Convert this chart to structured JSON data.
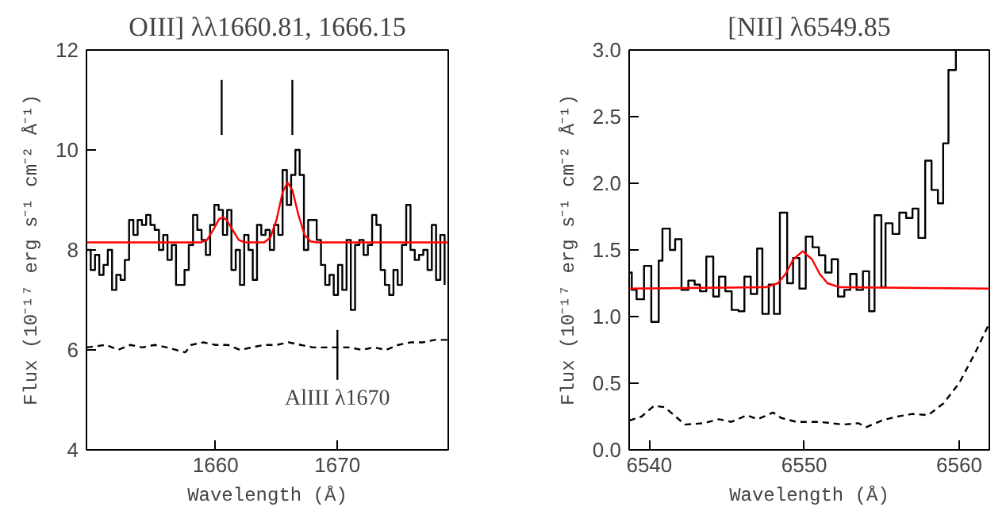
{
  "chart_data": [
    {
      "type": "step",
      "title": "OIII] λλ1660.81, 1666.15",
      "xlabel": "Wavelength (Å)",
      "ylabel": "Flux (10⁻¹⁷ erg s⁻¹ cm⁻² Å⁻¹)",
      "xlim": [
        1649.4,
        1679.1
      ],
      "ylim": [
        4,
        12
      ],
      "xticks": [
        1660,
        1670
      ],
      "yticks": [
        4,
        6,
        8,
        10,
        12
      ],
      "series": [
        {
          "color": "#000000",
          "x": [
            1649.4,
            1649.75,
            1650.1,
            1650.45,
            1650.8,
            1651.15,
            1651.5,
            1651.85,
            1652.2,
            1652.55,
            1652.9,
            1653.25,
            1653.6,
            1653.95,
            1654.3,
            1654.65,
            1655.0,
            1655.35,
            1655.7,
            1656.05,
            1656.4,
            1656.75,
            1657.1,
            1657.45,
            1657.8,
            1658.15,
            1658.5,
            1658.85,
            1659.2,
            1659.55,
            1659.9,
            1660.25,
            1660.6,
            1660.95,
            1661.3,
            1661.65,
            1662.0,
            1662.35,
            1662.7,
            1663.05,
            1663.4,
            1663.75,
            1664.1,
            1664.45,
            1664.8,
            1665.15,
            1665.5,
            1665.85,
            1666.2,
            1666.55,
            1666.9,
            1667.25,
            1667.6,
            1667.95,
            1668.3,
            1668.65,
            1669.0,
            1669.35,
            1669.7,
            1670.05,
            1670.4,
            1670.75,
            1671.1,
            1671.45,
            1671.8,
            1672.15,
            1672.5,
            1672.85,
            1673.2,
            1673.55,
            1673.9,
            1674.25,
            1674.6,
            1674.95,
            1675.3,
            1675.65,
            1676.0,
            1676.35,
            1676.7,
            1677.05,
            1677.4,
            1677.75,
            1678.1,
            1678.45,
            1678.8
          ],
          "values": [
            8.0,
            7.6,
            7.9,
            7.5,
            7.7,
            8.0,
            7.2,
            7.5,
            7.4,
            7.8,
            8.6,
            8.3,
            8.6,
            8.5,
            8.7,
            8.5,
            8.4,
            8.0,
            8.3,
            7.8,
            8.1,
            7.3,
            7.3,
            7.6,
            8.1,
            8.7,
            8.4,
            8.2,
            7.9,
            8.5,
            8.9,
            8.8,
            8.3,
            8.8,
            7.6,
            8.0,
            7.3,
            8.3,
            8.0,
            7.4,
            8.5,
            8.3,
            8.4,
            8.0,
            8.5,
            8.3,
            9.6,
            8.9,
            9.5,
            10.0,
            9.5,
            8.0,
            8.6,
            8.6,
            8.2,
            7.7,
            7.3,
            7.5,
            7.1,
            7.7,
            7.2,
            8.2,
            6.8,
            8.1,
            8.2,
            7.9,
            8.1,
            8.7,
            8.5,
            7.6,
            7.3,
            7.1,
            7.6,
            7.3,
            8.1,
            8.9,
            8.0,
            7.8,
            7.9,
            8.0,
            7.6,
            8.5,
            7.4,
            8.3,
            7.3
          ]
        },
        {
          "type": "line",
          "color": "#ff0000",
          "x": [
            1649.4,
            1658.8,
            1659.3,
            1659.8,
            1660.3,
            1660.6,
            1660.9,
            1661.4,
            1661.9,
            1662.4,
            1664.0,
            1664.5,
            1665.0,
            1665.5,
            1665.9,
            1666.3,
            1666.8,
            1667.3,
            1667.8,
            1668.3,
            1679.1
          ],
          "values": [
            8.15,
            8.15,
            8.2,
            8.4,
            8.62,
            8.65,
            8.6,
            8.4,
            8.2,
            8.15,
            8.15,
            8.25,
            8.6,
            9.15,
            9.35,
            9.2,
            8.7,
            8.3,
            8.17,
            8.15,
            8.15
          ]
        },
        {
          "type": "line",
          "color": "#000000",
          "line_style": "dashed",
          "x": [
            1649.4,
            1651,
            1652,
            1653,
            1654,
            1655,
            1656,
            1657.5,
            1658,
            1659,
            1660,
            1661,
            1662,
            1663,
            1664,
            1665,
            1666,
            1667,
            1668,
            1669,
            1670,
            1671,
            1672,
            1673,
            1674,
            1675,
            1676,
            1677,
            1678,
            1679.1
          ],
          "values": [
            6.05,
            6.1,
            6.0,
            6.1,
            6.05,
            6.1,
            6.05,
            5.95,
            6.1,
            6.15,
            6.1,
            6.1,
            6.0,
            6.05,
            6.1,
            6.1,
            6.15,
            6.1,
            6.05,
            6.05,
            6.05,
            6.05,
            6.0,
            6.05,
            6.0,
            6.1,
            6.15,
            6.15,
            6.2,
            6.2
          ]
        },
        {
          "type": "line",
          "color": "#000000",
          "x": [
            1660.5,
            1660.5
          ],
          "values": [
            10.3,
            11.4
          ]
        },
        {
          "type": "line",
          "color": "#000000",
          "x": [
            1666.3,
            1666.3
          ],
          "values": [
            10.3,
            11.4
          ]
        },
        {
          "type": "line",
          "color": "#000000",
          "x": [
            1670,
            1670
          ],
          "values": [
            5.4,
            6.4
          ]
        }
      ],
      "annotations": [
        {
          "text": "AlIII λ1670",
          "x": 1670,
          "y": 5.25
        }
      ]
    },
    {
      "type": "step",
      "title": "[NII] λ6549.85",
      "xlabel": "Wavelength (Å)",
      "ylabel": "Flux (10⁻¹⁷ erg s⁻¹ cm⁻² Å⁻¹)",
      "xlim": [
        6538.7,
        6561.95
      ],
      "ylim": [
        0,
        3
      ],
      "xticks": [
        6540,
        6550,
        6560
      ],
      "yticks": [
        {
          "value": 0,
          "label": "0.0"
        },
        {
          "value": 0.5,
          "label": "0.5"
        },
        {
          "value": 1,
          "label": "1.0"
        },
        {
          "value": 1.5,
          "label": "1.5"
        },
        {
          "value": 2,
          "label": "2.0"
        },
        {
          "value": 2.5,
          "label": "2.5"
        },
        {
          "value": 3,
          "label": "3.0"
        }
      ],
      "series": [
        {
          "color": "#000000",
          "x": [
            6538.7,
            6538.87,
            6539.18,
            6539.66,
            6540.13,
            6540.61,
            6540.85,
            6541.33,
            6541.67,
            6542.08,
            6542.52,
            6542.93,
            6543.27,
            6543.68,
            6544.13,
            6544.5,
            6544.91,
            6545.32,
            6545.76,
            6546.14,
            6546.55,
            6546.96,
            6547.3,
            6547.71,
            6548.05,
            6548.43,
            6548.9,
            6549.28,
            6549.69,
            6550.1,
            6550.54,
            6550.95,
            6551.36,
            6551.77,
            6552.18,
            6552.59,
            6552.97,
            6553.38,
            6553.79,
            6554.19,
            6554.54,
            6554.98,
            6555.25,
            6555.7,
            6556.14,
            6556.58,
            6556.99,
            6557.37,
            6557.81,
            6558.22,
            6558.63,
            6558.97,
            6559.31,
            6559.79
          ],
          "values": [
            1.33,
            1.2,
            1.13,
            1.38,
            0.96,
            1.42,
            1.66,
            1.5,
            1.58,
            1.2,
            1.27,
            1.24,
            1.19,
            1.45,
            1.15,
            1.3,
            1.19,
            1.05,
            1.04,
            1.3,
            1.17,
            1.51,
            1.02,
            1.24,
            1.02,
            1.78,
            1.25,
            1.44,
            1.21,
            1.6,
            1.52,
            1.46,
            1.33,
            1.43,
            1.15,
            1.2,
            1.32,
            1.2,
            1.34,
            1.04,
            1.76,
            1.22,
            1.7,
            1.62,
            1.78,
            1.74,
            1.81,
            1.59,
            2.17,
            1.95,
            1.85,
            2.3,
            2.85,
            3.0
          ]
        },
        {
          "type": "line",
          "color": "#ff0000",
          "x": [
            6538.7,
            6547.5,
            6548.3,
            6548.8,
            6549.3,
            6549.9,
            6550.5,
            6551.0,
            6551.5,
            6552.3,
            6561.95
          ],
          "values": [
            1.21,
            1.22,
            1.25,
            1.32,
            1.43,
            1.49,
            1.43,
            1.32,
            1.25,
            1.22,
            1.21
          ]
        },
        {
          "type": "line",
          "color": "#000000",
          "line_style": "dashed",
          "x": [
            6538.7,
            6539.5,
            6540.3,
            6541,
            6541.7,
            6542.3,
            6543.5,
            6544.5,
            6545.3,
            6546.3,
            6547,
            6548,
            6548.5,
            6549.5,
            6551,
            6552.5,
            6553.5,
            6554,
            6555,
            6556,
            6557,
            6558,
            6559,
            6560,
            6561,
            6561.95
          ],
          "values": [
            0.22,
            0.25,
            0.33,
            0.32,
            0.25,
            0.19,
            0.2,
            0.23,
            0.21,
            0.26,
            0.23,
            0.28,
            0.24,
            0.21,
            0.21,
            0.19,
            0.2,
            0.17,
            0.22,
            0.25,
            0.27,
            0.26,
            0.35,
            0.5,
            0.72,
            0.95
          ]
        }
      ]
    }
  ]
}
